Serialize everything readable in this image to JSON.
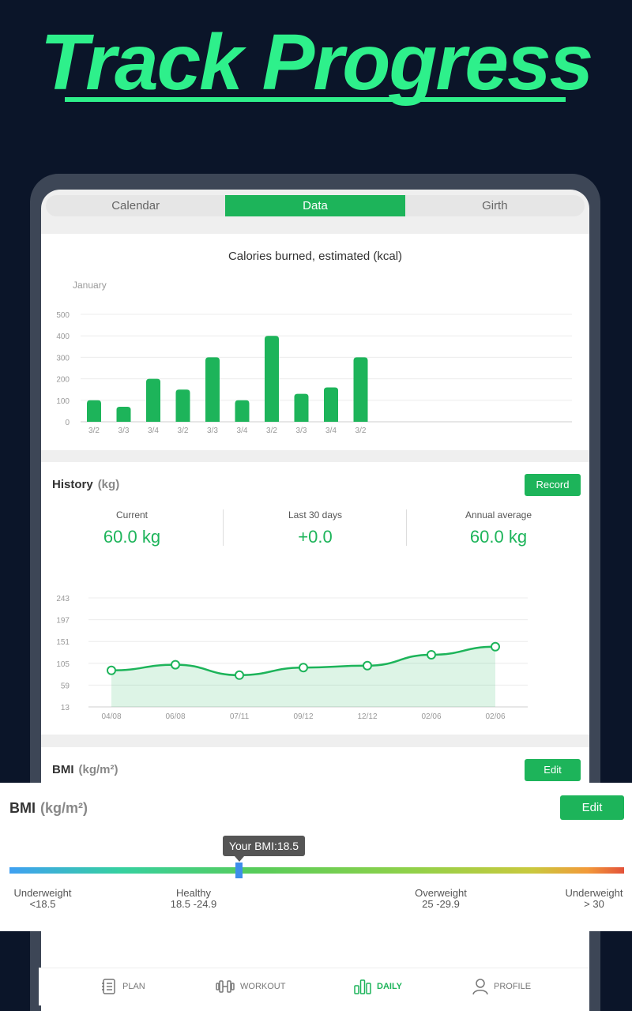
{
  "promo": {
    "headline": "Track Progress"
  },
  "tabs": [
    {
      "label": "Calendar",
      "active": false
    },
    {
      "label": "Data",
      "active": true
    },
    {
      "label": "Girth",
      "active": false
    }
  ],
  "calories": {
    "title": "Calories burned, estimated (kcal)",
    "month": "January"
  },
  "history": {
    "title": "History",
    "unit": "(kg)",
    "record_label": "Record",
    "stats": [
      {
        "label": "Current",
        "value": "60.0 kg"
      },
      {
        "label": "Last 30 days",
        "value": "+0.0"
      },
      {
        "label": "Annual average",
        "value": "60.0 kg"
      }
    ]
  },
  "bmi": {
    "title": "BMI",
    "unit": "(kg/m²)",
    "edit_label": "Edit",
    "tooltip": "Your BMI:18.5",
    "value": 18.5,
    "categories": [
      {
        "name": "Underweight",
        "range": "<18.5"
      },
      {
        "name": "Healthy",
        "range": "18.5 -24.9"
      },
      {
        "name": "Overweight",
        "range": "25 -29.9"
      },
      {
        "name": "Underweight",
        "range": "> 30"
      }
    ]
  },
  "nav": [
    {
      "label": "PLAN",
      "icon": "plan-icon",
      "active": false
    },
    {
      "label": "WORKOUT",
      "icon": "dumbbell-icon",
      "active": false
    },
    {
      "label": "DAILY",
      "icon": "bar-chart-icon",
      "active": true
    },
    {
      "label": "PROFILE",
      "icon": "person-icon",
      "active": false
    }
  ],
  "colors": {
    "accent": "#1db45a",
    "headline": "#2ef08b",
    "background": "#0b1529"
  },
  "chart_data": [
    {
      "type": "bar",
      "title": "Calories burned, estimated (kcal)",
      "categories": [
        "3/2",
        "3/3",
        "3/4",
        "3/2",
        "3/3",
        "3/4",
        "3/2",
        "3/3",
        "3/4",
        "3/2"
      ],
      "values": [
        100,
        70,
        200,
        150,
        300,
        100,
        400,
        130,
        160,
        300
      ],
      "yticks": [
        0,
        100,
        200,
        300,
        400,
        500
      ],
      "ylim": [
        0,
        500
      ],
      "grid": true
    },
    {
      "type": "area",
      "categories": [
        "04/08",
        "06/08",
        "07/11",
        "09/12",
        "12/12",
        "02/06",
        "02/06"
      ],
      "values": [
        90,
        102,
        80,
        96,
        100,
        123,
        140
      ],
      "yticks": [
        13,
        59,
        105,
        151,
        197,
        243
      ],
      "ylim": [
        13,
        243
      ],
      "grid": true
    }
  ]
}
